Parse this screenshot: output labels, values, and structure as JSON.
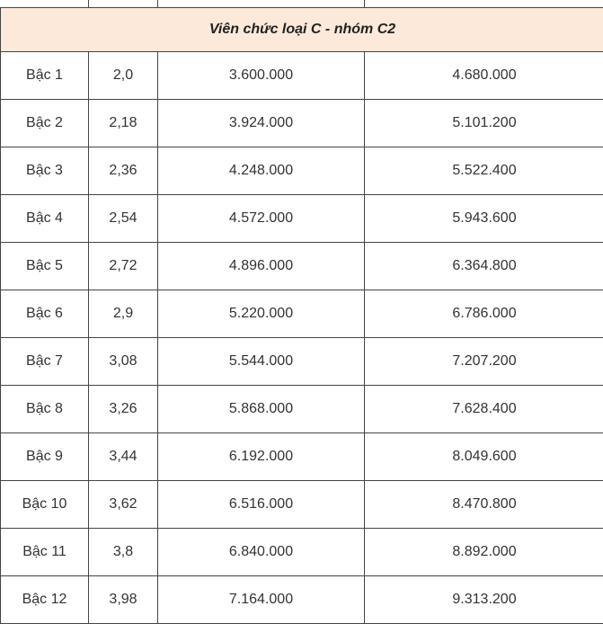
{
  "table": {
    "title": "Viên chức loại C - nhóm C2",
    "rows": [
      [
        "Bậc 1",
        "2,0",
        "3.600.000",
        "4.680.000"
      ],
      [
        "Bậc 2",
        "2,18",
        "3.924.000",
        "5.101.200"
      ],
      [
        "Bậc 3",
        "2,36",
        "4.248.000",
        "5.522.400"
      ],
      [
        "Bậc 4",
        "2,54",
        "4.572.000",
        "5.943.600"
      ],
      [
        "Bậc 5",
        "2,72",
        "4.896.000",
        "6.364.800"
      ],
      [
        "Bậc 6",
        "2,9",
        "5.220.000",
        "6.786.000"
      ],
      [
        "Bậc 7",
        "3,08",
        "5.544.000",
        "7.207.200"
      ],
      [
        "Bậc 8",
        "3,26",
        "5.868.000",
        "7.628.400"
      ],
      [
        "Bậc 9",
        "3,44",
        "6.192.000",
        "8.049.600"
      ],
      [
        "Bậc 10",
        "3,62",
        "6.516.000",
        "8.470.800"
      ],
      [
        "Bậc 11",
        "3,8",
        "6.840.000",
        "8.892.000"
      ],
      [
        "Bậc 12",
        "3,98",
        "7.164.000",
        "9.313.200"
      ]
    ]
  }
}
